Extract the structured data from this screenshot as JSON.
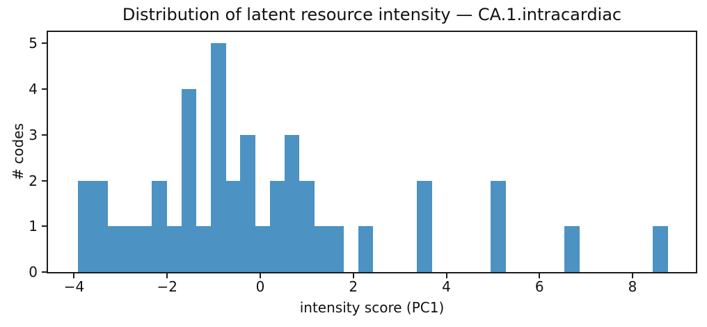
{
  "figure": {
    "background": "#ffffff",
    "text_color": "#111111",
    "spine_color": "#1c1c1c"
  },
  "chart_data": {
    "type": "bar",
    "subtype": "histogram",
    "title": "Distribution of latent resource intensity — CA.1.intracardiac",
    "xlabel": "intensity score (PC1)",
    "ylabel": "# codes",
    "bar_color": "#4c92c3",
    "bin_start": -3.91,
    "bin_width": 0.3164,
    "counts": [
      2,
      2,
      1,
      1,
      1,
      2,
      1,
      4,
      1,
      5,
      2,
      3,
      1,
      2,
      3,
      2,
      1,
      1,
      0,
      1,
      0,
      0,
      0,
      2,
      0,
      0,
      0,
      0,
      2,
      0,
      0,
      0,
      0,
      1,
      0,
      0,
      0,
      0,
      0,
      1
    ],
    "total_codes": 42,
    "xlim": [
      -4.56,
      9.36
    ],
    "ylim": [
      0,
      5.25
    ],
    "grid": false,
    "legend": "none",
    "xticks": [
      {
        "value": -4,
        "label": "−4"
      },
      {
        "value": -2,
        "label": "−2"
      },
      {
        "value": 0,
        "label": "0"
      },
      {
        "value": 2,
        "label": "2"
      },
      {
        "value": 4,
        "label": "4"
      },
      {
        "value": 6,
        "label": "6"
      },
      {
        "value": 8,
        "label": "8"
      }
    ],
    "yticks": [
      {
        "value": 0,
        "label": "0"
      },
      {
        "value": 1,
        "label": "1"
      },
      {
        "value": 2,
        "label": "2"
      },
      {
        "value": 3,
        "label": "3"
      },
      {
        "value": 4,
        "label": "4"
      },
      {
        "value": 5,
        "label": "5"
      }
    ]
  }
}
